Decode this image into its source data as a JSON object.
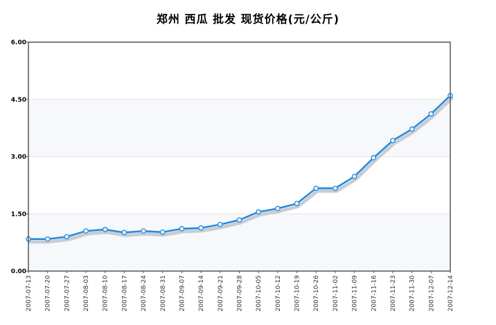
{
  "chart_data": {
    "type": "line",
    "title": "郑州 西瓜 批发 现货价格(元/公斤)",
    "xlabel": "",
    "ylabel": "",
    "ylim": [
      0,
      6
    ],
    "y_ticks": [
      "0.00",
      "1.50",
      "3.00",
      "4.50",
      "6.00"
    ],
    "y_tick_values": [
      0,
      1.5,
      3,
      4.5,
      6
    ],
    "grid": true,
    "legend": "none",
    "categories": [
      "2007-07-13",
      "2007-07-20",
      "2007-07-27",
      "2007-08-03",
      "2007-08-10",
      "2007-08-17",
      "2007-08-24",
      "2007-08-31",
      "2007-09-07",
      "2007-09-14",
      "2007-09-21",
      "2007-09-28",
      "2007-10-05",
      "2007-10-12",
      "2007-10-19",
      "2007-10-26",
      "2007-11-02",
      "2007-11-09",
      "2007-11-16",
      "2007-11-23",
      "2007-11-30",
      "2007-12-07",
      "2007-12-14"
    ],
    "series": [
      {
        "values": [
          0.84,
          0.84,
          0.9,
          1.05,
          1.09,
          1.01,
          1.05,
          1.02,
          1.11,
          1.13,
          1.22,
          1.34,
          1.55,
          1.64,
          1.77,
          2.17,
          2.17,
          2.48,
          2.97,
          3.42,
          3.72,
          4.12,
          4.6
        ]
      }
    ],
    "colors": {
      "line": "#2288dd",
      "shadow": "#c8cdd4",
      "marker_fill": "#e6f4ff",
      "marker_stroke": "#2288dd",
      "band_light": "#f6f8fb",
      "band_white": "#ffffff",
      "axis": "#555555",
      "grid": "#e6e6e6"
    }
  }
}
